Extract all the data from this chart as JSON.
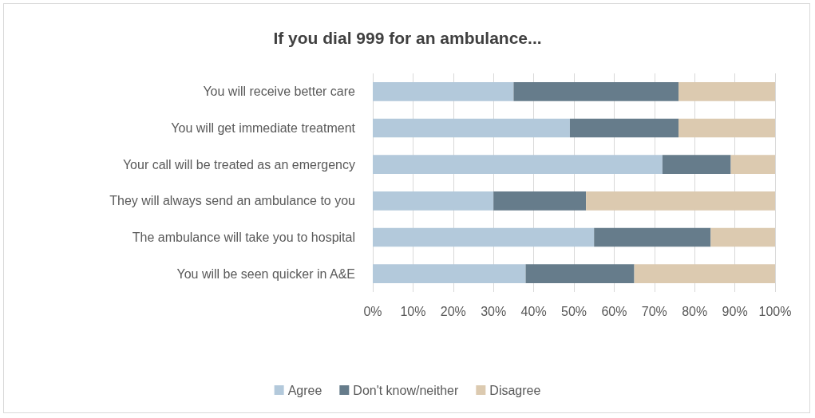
{
  "chart_data": {
    "type": "bar",
    "orientation": "horizontal",
    "stacked": true,
    "title": "If you dial 999 for an ambulance...",
    "categories": [
      "You will receive better care",
      "You will get immediate treatment",
      "Your call will be treated as an emergency",
      "They will always send an ambulance to you",
      "The ambulance will take you to hospital",
      "You will be seen quicker in A&E"
    ],
    "series": [
      {
        "name": "Agree",
        "color": "#b3c9db",
        "values": [
          35,
          49,
          72,
          30,
          55,
          38
        ]
      },
      {
        "name": "Don't know/neither",
        "color": "#667c8b",
        "values": [
          41,
          27,
          17,
          23,
          29,
          27
        ]
      },
      {
        "name": "Disagree",
        "color": "#dccab0",
        "values": [
          24,
          24,
          11,
          47,
          16,
          35
        ]
      }
    ],
    "xlim": [
      0,
      100
    ],
    "xticks": [
      {
        "value": 0,
        "label": "0%"
      },
      {
        "value": 10,
        "label": "10%"
      },
      {
        "value": 20,
        "label": "20%"
      },
      {
        "value": 30,
        "label": "30%"
      },
      {
        "value": 40,
        "label": "40%"
      },
      {
        "value": 50,
        "label": "50%"
      },
      {
        "value": 60,
        "label": "60%"
      },
      {
        "value": 70,
        "label": "70%"
      },
      {
        "value": 80,
        "label": "80%"
      },
      {
        "value": 90,
        "label": "90%"
      },
      {
        "value": 100,
        "label": "100%"
      }
    ],
    "grid": "x",
    "legend": "bottom"
  }
}
